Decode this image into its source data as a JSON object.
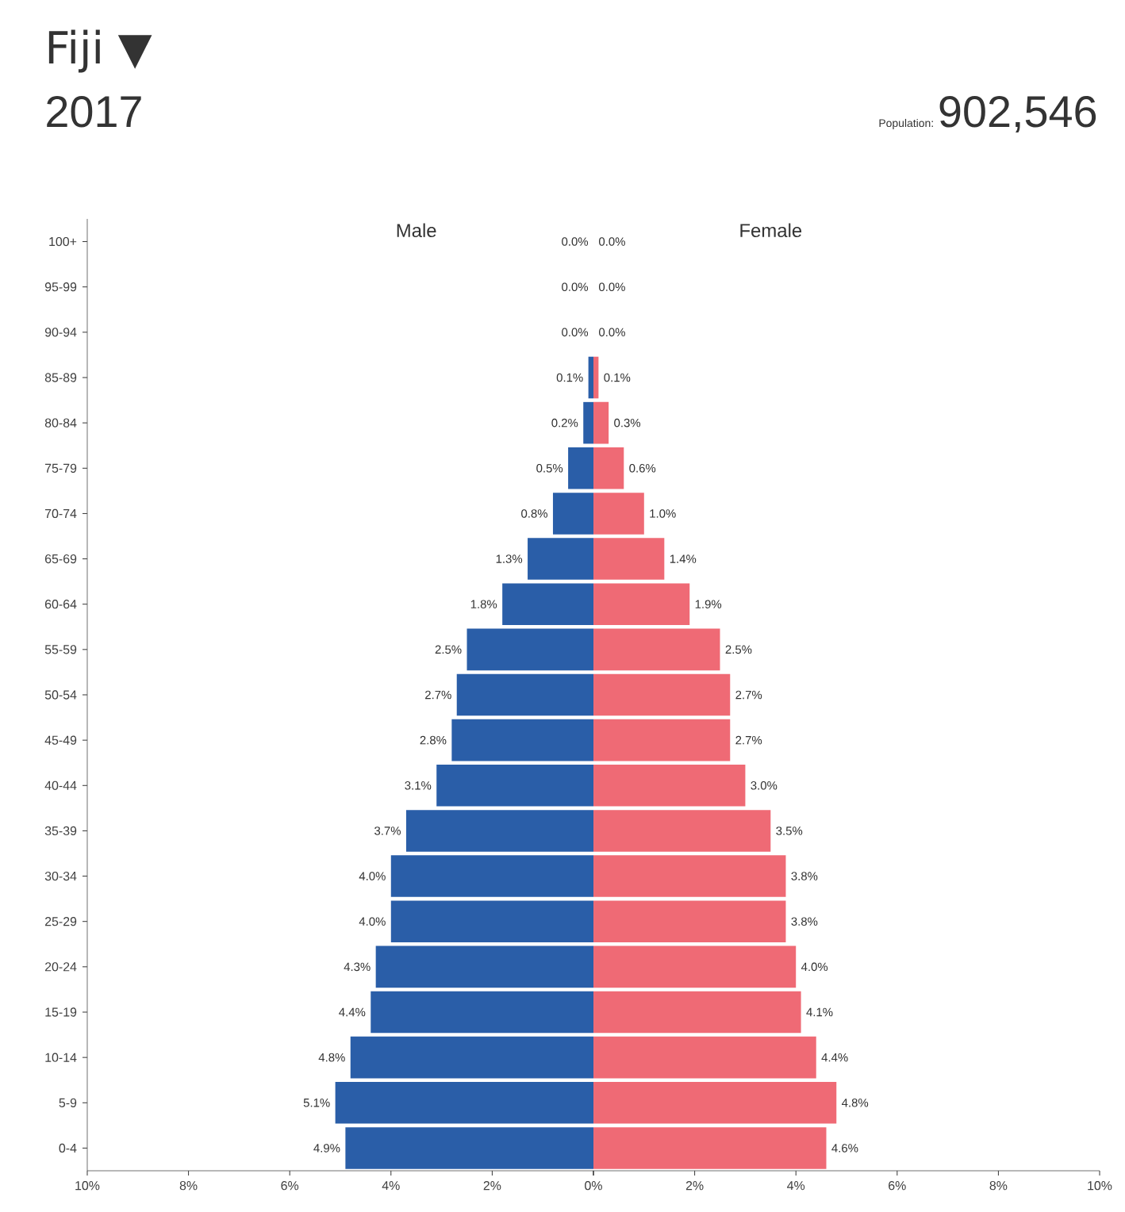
{
  "chart_data": [
    {
      "type": "other",
      "title": "Fiji ▼",
      "subtitle": "2017",
      "annotations": [
        "Population:",
        "902,546"
      ]
    },
    {
      "type": "bar",
      "orientation": "horizontal",
      "title": "Male",
      "categories": [
        "100+",
        "95-99",
        "90-94",
        "85-89",
        "80-84",
        "75-79",
        "70-74",
        "65-69",
        "60-64",
        "55-59",
        "50-54",
        "45-49",
        "40-44",
        "35-39",
        "30-34",
        "25-29",
        "20-24",
        "15-19",
        "10-14",
        "5-9",
        "0-4"
      ],
      "series": [
        {
          "color": "#2a5ea8",
          "values": [
            0.0,
            0.0,
            0.0,
            0.1,
            0.2,
            0.5,
            0.8,
            1.3,
            1.8,
            2.5,
            2.7,
            2.8,
            3.1,
            3.7,
            4.0,
            4.0,
            4.3,
            4.4,
            4.8,
            5.1,
            4.9
          ],
          "value_labels": [
            "0.0%",
            "0.0%",
            "0.0%",
            "0.1%",
            "0.2%",
            "0.5%",
            "0.8%",
            "1.3%",
            "1.8%",
            "2.5%",
            "2.7%",
            "2.8%",
            "3.1%",
            "3.7%",
            "4.0%",
            "4.0%",
            "4.3%",
            "4.4%",
            "4.8%",
            "5.1%",
            "4.9%"
          ]
        }
      ],
      "xlim": [
        10,
        0
      ],
      "xticks": [
        {
          "value": 10,
          "label": "10%"
        },
        {
          "value": 8,
          "label": "8%"
        },
        {
          "value": 6,
          "label": "6%"
        },
        {
          "value": 4,
          "label": "4%"
        },
        {
          "value": 2,
          "label": "2%"
        },
        {
          "value": 0,
          "label": null
        }
      ]
    },
    {
      "type": "bar",
      "orientation": "horizontal",
      "title": "Female",
      "tick_labels": "x",
      "categories": [
        null,
        null,
        null,
        null,
        null,
        null,
        null,
        null,
        null,
        null,
        null,
        null,
        null,
        null,
        null,
        null,
        null,
        null,
        null,
        null,
        null
      ],
      "series": [
        {
          "color": "#ef6a75",
          "values": [
            0.0,
            0.0,
            0.0,
            0.1,
            0.3,
            0.6,
            1.0,
            1.4,
            1.9,
            2.5,
            2.7,
            2.7,
            3.0,
            3.5,
            3.8,
            3.8,
            4.0,
            4.1,
            4.4,
            4.8,
            4.6
          ],
          "value_labels": [
            "0.0%",
            "0.0%",
            "0.0%",
            "0.1%",
            "0.3%",
            "0.6%",
            "1.0%",
            "1.4%",
            "1.9%",
            "2.5%",
            "2.7%",
            "2.7%",
            "3.0%",
            "3.5%",
            "3.8%",
            "3.8%",
            "4.0%",
            "4.1%",
            "4.4%",
            "4.8%",
            "4.6%"
          ]
        }
      ],
      "xlim": [
        0,
        10
      ],
      "xticks": [
        {
          "value": 0,
          "label": "0%"
        },
        {
          "value": 2,
          "label": "2%"
        },
        {
          "value": 4,
          "label": "4%"
        },
        {
          "value": 6,
          "label": "6%"
        },
        {
          "value": 8,
          "label": "8%"
        },
        {
          "value": 10,
          "label": "10%"
        }
      ]
    }
  ]
}
